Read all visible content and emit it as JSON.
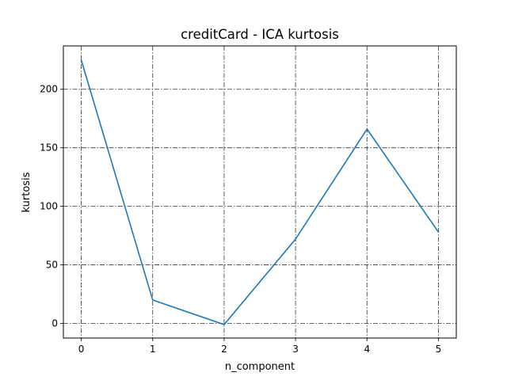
{
  "chart_data": {
    "type": "line",
    "title": "creditCard - ICA kurtosis",
    "xlabel": "n_component",
    "ylabel": "kurtosis",
    "x": [
      0,
      1,
      2,
      3,
      4,
      5
    ],
    "series": [
      {
        "values": [
          225,
          20,
          -1,
          72,
          166,
          78
        ],
        "color": "#1f77b4"
      }
    ],
    "xlim": [
      -0.25,
      5.25
    ],
    "ylim": [
      -12.5,
      237
    ],
    "xticks": [
      0,
      1,
      2,
      3,
      4,
      5
    ],
    "yticks": [
      0,
      50,
      100,
      150,
      200
    ],
    "grid": true,
    "grid_style": "dash-dot"
  }
}
